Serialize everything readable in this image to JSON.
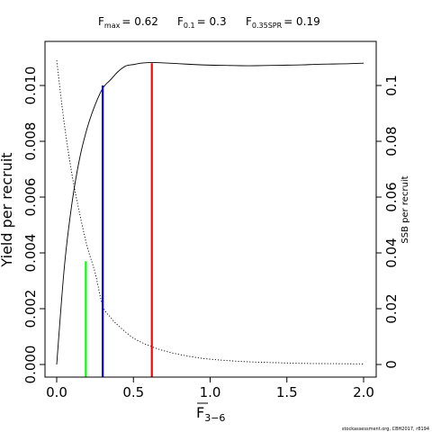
{
  "chart_data": {
    "type": "line",
    "title_parts": {
      "fmax_label": "F",
      "fmax_sub": "max",
      "fmax_value": "= 0.62",
      "f01_label": "F",
      "f01_sub": "0.1",
      "f01_value": "= 0.3",
      "fspr_label": "F",
      "fspr_sub": "0.35SPR",
      "fspr_value": "= 0.19"
    },
    "xlabel": "F",
    "xlabel_sub": "3−6",
    "ylabel": "Yield per recruit",
    "ylabel_right": "SSB per recruit",
    "xlim": [
      0,
      2
    ],
    "ylim": [
      0,
      0.011
    ],
    "ylim_right": [
      0,
      0.11
    ],
    "x_ticks": [
      "0.0",
      "0.5",
      "1.0",
      "1.5",
      "2.0"
    ],
    "y_ticks": [
      "0.000",
      "0.002",
      "0.004",
      "0.006",
      "0.008",
      "0.010"
    ],
    "y_ticks_right": [
      "0",
      "0.02",
      "0.04",
      "0.06",
      "0.08",
      "0.1"
    ],
    "grid": false,
    "series": [
      {
        "line": "solid",
        "axis": "left",
        "x": [
          0,
          0.05,
          0.1,
          0.15,
          0.2,
          0.25,
          0.3,
          0.35,
          0.4,
          0.45,
          0.5,
          0.55,
          0.6,
          0.65,
          0.7,
          0.8,
          0.9,
          1.0,
          1.1,
          1.2,
          1.3,
          1.4,
          1.5,
          1.6,
          1.7,
          1.8,
          1.9,
          2.0
        ],
        "y": [
          0,
          0.0035,
          0.0058,
          0.0074,
          0.0085,
          0.0093,
          0.0099,
          0.0102,
          0.0105,
          0.0107,
          0.01075,
          0.0108,
          0.01082,
          0.01082,
          0.01081,
          0.01078,
          0.01075,
          0.01073,
          0.01072,
          0.01071,
          0.01071,
          0.01072,
          0.01073,
          0.01074,
          0.01076,
          0.01077,
          0.01078,
          0.0108
        ]
      },
      {
        "line": "dotted",
        "axis": "right",
        "x": [
          0,
          0.05,
          0.1,
          0.15,
          0.2,
          0.25,
          0.3,
          0.35,
          0.4,
          0.5,
          0.6,
          0.7,
          0.8,
          0.9,
          1.0,
          1.2,
          1.4,
          1.6,
          1.8,
          2.0
        ],
        "y": [
          0.109,
          0.086,
          0.068,
          0.054,
          0.042,
          0.033,
          0.021,
          0.017,
          0.014,
          0.0095,
          0.0068,
          0.0049,
          0.0036,
          0.0026,
          0.0019,
          0.0011,
          0.0007,
          0.0004,
          0.0003,
          0.0002
        ]
      }
    ],
    "reference_lines": [
      {
        "x": 0.19,
        "y": 0.0037,
        "color": "#00ff00"
      },
      {
        "x": 0.3,
        "y": 0.01,
        "color": "#0000ff"
      },
      {
        "x": 0.62,
        "y": 0.0108,
        "color": "#ff0000"
      }
    ],
    "credit": "stockassessment.org, CBH2017, r8194"
  }
}
